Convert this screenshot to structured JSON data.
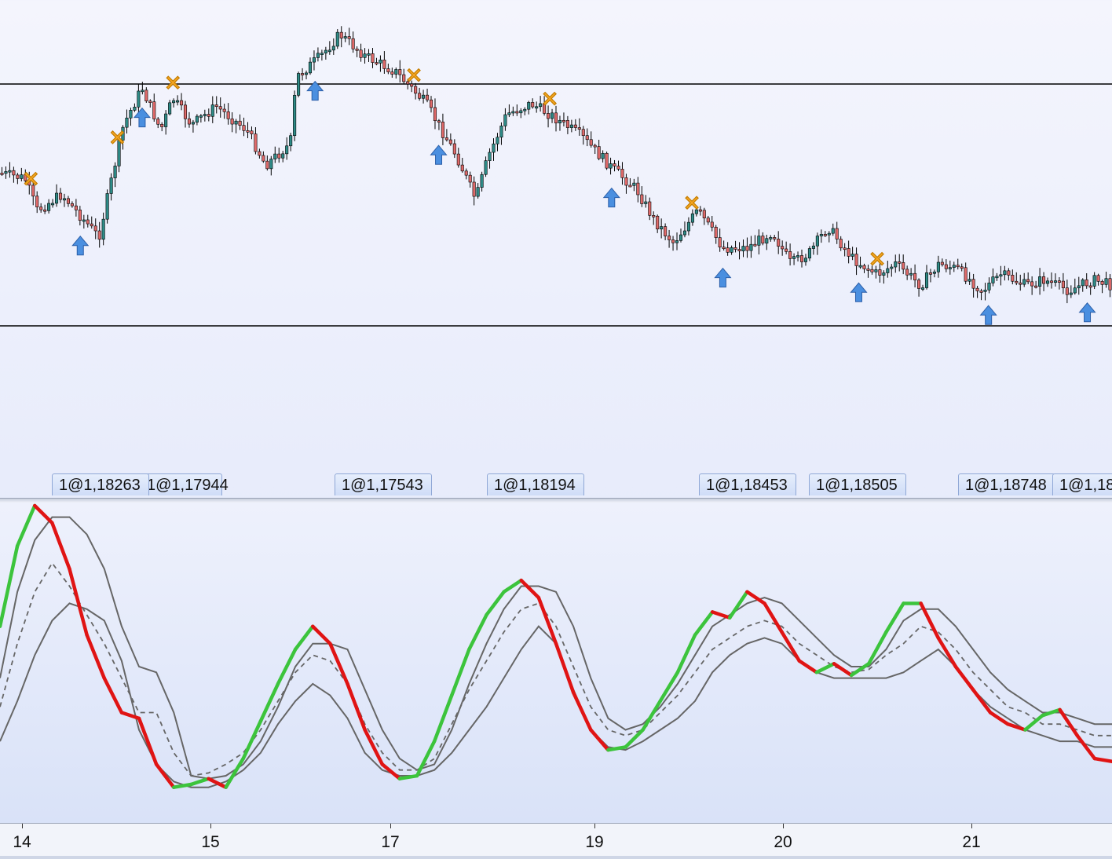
{
  "chart_data": [
    {
      "type": "candlestick",
      "title": "",
      "horizontal_lines": [
        "upper-level",
        "lower-level"
      ],
      "price_path": [
        [
          0,
          0.44
        ],
        [
          0.4,
          0.42
        ],
        [
          0.6,
          0.3
        ],
        [
          1.0,
          0.36
        ],
        [
          1.6,
          0.2
        ],
        [
          2.0,
          0.62
        ],
        [
          2.3,
          0.76
        ],
        [
          2.6,
          0.6
        ],
        [
          2.8,
          0.72
        ],
        [
          3.1,
          0.62
        ],
        [
          3.5,
          0.69
        ],
        [
          4.0,
          0.6
        ],
        [
          4.3,
          0.47
        ],
        [
          4.7,
          0.55
        ],
        [
          4.8,
          0.8
        ],
        [
          5.2,
          0.88
        ],
        [
          5.5,
          0.96
        ],
        [
          5.9,
          0.88
        ],
        [
          6.4,
          0.82
        ],
        [
          6.9,
          0.7
        ],
        [
          7.2,
          0.58
        ],
        [
          7.4,
          0.5
        ],
        [
          7.7,
          0.34
        ],
        [
          7.9,
          0.5
        ],
        [
          8.2,
          0.66
        ],
        [
          8.6,
          0.7
        ],
        [
          8.9,
          0.66
        ],
        [
          9.4,
          0.58
        ],
        [
          9.9,
          0.46
        ],
        [
          10.3,
          0.38
        ],
        [
          10.6,
          0.26
        ],
        [
          10.9,
          0.18
        ],
        [
          11.1,
          0.24
        ],
        [
          11.3,
          0.3
        ],
        [
          11.7,
          0.16
        ],
        [
          12.1,
          0.16
        ],
        [
          12.5,
          0.22
        ],
        [
          12.8,
          0.1
        ],
        [
          13.1,
          0.14
        ],
        [
          13.4,
          0.24
        ],
        [
          13.8,
          0.12
        ],
        [
          14.2,
          0.06
        ],
        [
          14.5,
          0.1
        ],
        [
          14.9,
          0.02
        ],
        [
          15.2,
          0.1
        ],
        [
          15.5,
          0.08
        ],
        [
          15.9,
          0.0
        ],
        [
          16.2,
          0.06
        ],
        [
          16.6,
          0.02
        ],
        [
          16.9,
          0.04
        ],
        [
          17.3,
          0.0
        ],
        [
          17.7,
          0.04
        ],
        [
          18.0,
          0.02
        ]
      ],
      "signals": {
        "buy_arrow_steps": [
          1.3,
          2.3,
          5.1,
          7.1,
          9.9,
          11.7,
          13.9,
          16.0,
          17.6
        ],
        "exit_x_steps": [
          0.5,
          1.9,
          2.8,
          6.7,
          8.9,
          11.2,
          14.2
        ]
      }
    },
    {
      "type": "line",
      "title": "",
      "x_ticks": [
        "14",
        "15",
        "17",
        "19",
        "20",
        "21"
      ],
      "series": [
        {
          "key": "main",
          "values": [
            58,
            86,
            100,
            94,
            78,
            55,
            40,
            28,
            26,
            10,
            2,
            3,
            5,
            2,
            12,
            25,
            38,
            50,
            58,
            52,
            38,
            22,
            10,
            5,
            6,
            18,
            34,
            50,
            62,
            70,
            74,
            68,
            52,
            35,
            22,
            15,
            16,
            22,
            32,
            42,
            55,
            63,
            61,
            70,
            66,
            56,
            46,
            42,
            45,
            41,
            45,
            56,
            66,
            66,
            54,
            44,
            36,
            28,
            24,
            22,
            27,
            29,
            20,
            12,
            11
          ]
        },
        {
          "key": "upper-band",
          "values": [
            40,
            70,
            88,
            96,
            96,
            90,
            78,
            58,
            44,
            42,
            28,
            6,
            5,
            6,
            10,
            18,
            30,
            44,
            52,
            52,
            50,
            36,
            22,
            12,
            8,
            10,
            22,
            38,
            52,
            64,
            72,
            72,
            70,
            58,
            40,
            26,
            22,
            24,
            30,
            38,
            48,
            58,
            62,
            66,
            68,
            66,
            60,
            54,
            48,
            44,
            44,
            50,
            60,
            64,
            64,
            58,
            50,
            42,
            36,
            32,
            28,
            28,
            26,
            24,
            24
          ]
        },
        {
          "key": "signal-dashed",
          "values": [
            30,
            52,
            70,
            80,
            72,
            62,
            52,
            40,
            28,
            28,
            14,
            6,
            7,
            10,
            14,
            22,
            32,
            42,
            48,
            46,
            38,
            24,
            14,
            8,
            8,
            12,
            24,
            36,
            46,
            56,
            64,
            66,
            58,
            44,
            30,
            22,
            20,
            22,
            28,
            34,
            42,
            50,
            54,
            58,
            60,
            58,
            52,
            48,
            44,
            42,
            43,
            48,
            52,
            58,
            56,
            50,
            42,
            36,
            30,
            28,
            24,
            24,
            22,
            20,
            20
          ]
        },
        {
          "key": "lower-band",
          "values": [
            18,
            32,
            48,
            60,
            66,
            64,
            60,
            46,
            22,
            10,
            4,
            2,
            2,
            4,
            8,
            14,
            24,
            32,
            38,
            34,
            26,
            14,
            8,
            6,
            6,
            8,
            14,
            22,
            30,
            40,
            50,
            58,
            52,
            36,
            22,
            16,
            15,
            18,
            22,
            26,
            32,
            42,
            48,
            52,
            54,
            52,
            46,
            42,
            40,
            40,
            40,
            40,
            42,
            46,
            50,
            44,
            36,
            30,
            26,
            22,
            20,
            18,
            18,
            16,
            16
          ]
        }
      ],
      "ylim": [
        0,
        100
      ]
    }
  ],
  "trade_labels": [
    {
      "text": "1@1,18263"
    },
    {
      "text": "1@1,17944"
    },
    {
      "text": "1@1,17543"
    },
    {
      "text": "1@1,18194"
    },
    {
      "text": "1@1,18453"
    },
    {
      "text": "1@1,18505"
    },
    {
      "text": "1@1,18748"
    },
    {
      "text": "1@1,18"
    }
  ],
  "time_axis": {
    "ticks": [
      "14",
      "15",
      "17",
      "19",
      "20",
      "21"
    ]
  },
  "colors": {
    "bull_candle": "#2e8b87",
    "bear_candle": "#e06a6a",
    "rising_line": "#3cc43c",
    "falling_line": "#e01414",
    "band_line": "#666666",
    "buy_arrow": "#4a8fe0",
    "exit_marker": "#f5a623"
  }
}
